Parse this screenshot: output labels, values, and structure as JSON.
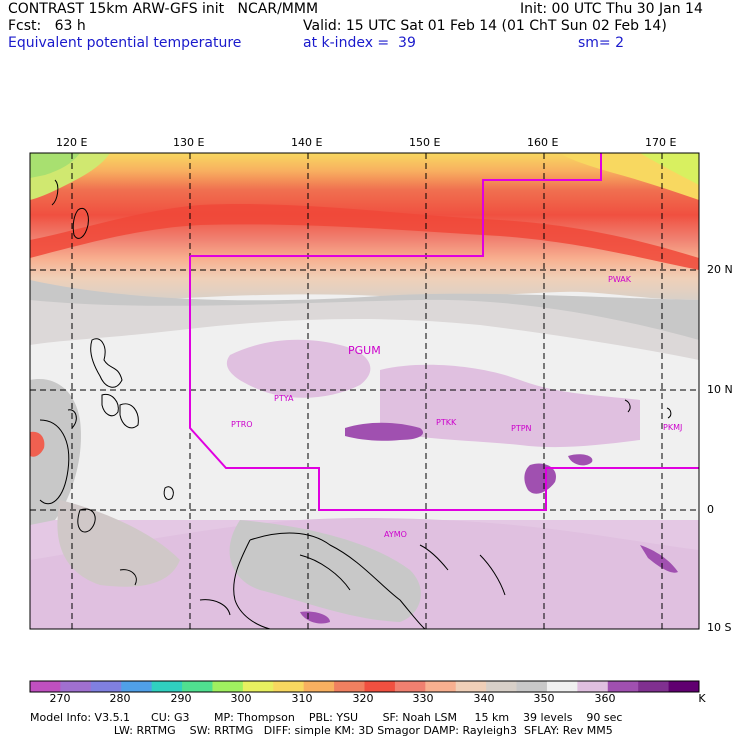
{
  "header": {
    "line1_left": "CONTRAST 15km ARW-GFS init   NCAR/MMM",
    "line1_right": "Init: 00 UTC Thu 30 Jan 14",
    "line2_left": "Fcst:   63 h",
    "line2_right": "Valid: 15 UTC Sat 01 Feb 14 (01 ChT Sun 02 Feb 14)",
    "line3_left": "Equivalent potential temperature",
    "line3_mid": "at k-index =  39",
    "line3_right": "sm= 2"
  },
  "map": {
    "lon_labels": [
      "120 E",
      "130 E",
      "140 E",
      "150 E",
      "160 E",
      "170 E"
    ],
    "lat_labels": [
      "20 N",
      "10 N",
      "0",
      "10 S"
    ],
    "stations": [
      {
        "id": "PWAK"
      },
      {
        "id": "PGUM"
      },
      {
        "id": "PTYA"
      },
      {
        "id": "PTRO"
      },
      {
        "id": "PTKK"
      },
      {
        "id": "PTPN"
      },
      {
        "id": "PKMJ"
      },
      {
        "id": "AYMO"
      }
    ],
    "colors": {
      "boundary": "#e000e0",
      "station_label": "#cc00cc",
      "coast": "#000000"
    }
  },
  "colorbar": {
    "unit": "K",
    "tick_labels": [
      "270",
      "280",
      "290",
      "300",
      "310",
      "320",
      "330",
      "340",
      "350",
      "360"
    ],
    "colors": [
      "#c050c0",
      "#a070d0",
      "#8080e0",
      "#50a0e8",
      "#30d0c0",
      "#50e090",
      "#a0f060",
      "#e8f060",
      "#f8d860",
      "#f8b060",
      "#f08060",
      "#f05040",
      "#f08070",
      "#f8b090",
      "#f0d0b8",
      "#d8d0c8",
      "#c8c8c8",
      "#f0f0f0",
      "#e0c0e0",
      "#a050b0",
      "#803090",
      "#600070"
    ]
  },
  "footer": {
    "line1": "Model Info: V3.5.1      CU: G3       MP: Thompson    PBL: YSU       SF: Noah LSM     15 km    39 levels    90 sec",
    "line2": "                        LW: RRTMG    SW: RRTMG   DIFF: simple KM: 3D Smagor DAMP: Rayleigh3  SFLAY: Rev MM5"
  }
}
